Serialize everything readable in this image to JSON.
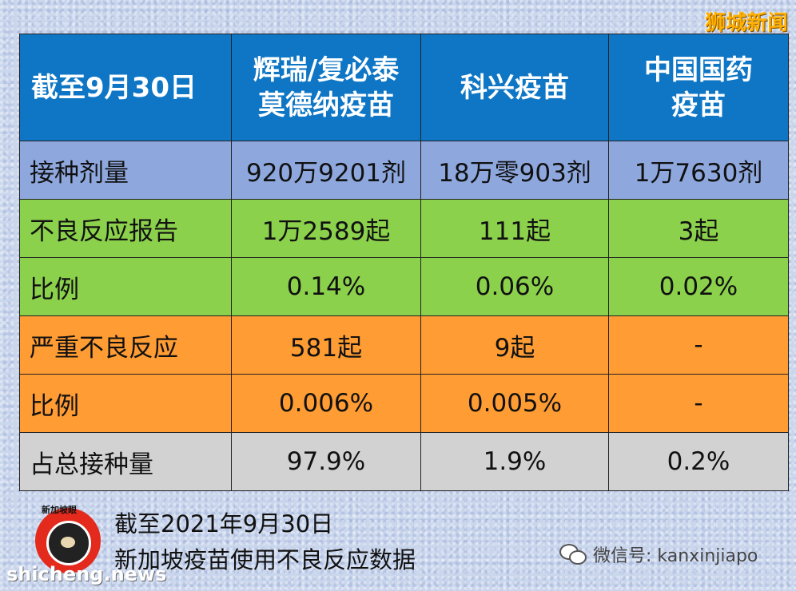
{
  "brand": "狮城新闻",
  "table": {
    "header": [
      "截至9月30日",
      "辉瑞/复必泰\n莫德纳疫苗",
      "科兴疫苗",
      "中国国药\n疫苗"
    ],
    "rows": [
      {
        "label": "接种剂量",
        "values": [
          "920万9201剂",
          "18万零903剂",
          "1万7630剂"
        ],
        "color": "#8ea8de"
      },
      {
        "label": "不良反应报告",
        "values": [
          "1万2589起",
          "111起",
          "3起"
        ],
        "color": "#8bd14b"
      },
      {
        "label": "比例",
        "values": [
          "0.14%",
          "0.06%",
          "0.02%"
        ],
        "color": "#8bd14b"
      },
      {
        "label": "严重不良反应",
        "values": [
          "581起",
          "9起",
          "-"
        ],
        "color": "#ff9c33"
      },
      {
        "label": "比例",
        "values": [
          "0.006%",
          "0.005%",
          "-"
        ],
        "color": "#ff9c33"
      },
      {
        "label": "占总接种量",
        "values": [
          "97.9%",
          "1.9%",
          "0.2%"
        ],
        "color": "#d2d2d2"
      }
    ]
  },
  "footnote": {
    "line1": "截至2021年9月30日",
    "line2": "新加坡疫苗使用不良反应数据"
  },
  "logo_caption": "新加坡眼",
  "site": "shicheng.news",
  "wechat": "微信号: kanxinjiapo",
  "icons": {
    "logo": "kanxinjiapo-logo-icon",
    "wechat": "wechat-icon"
  }
}
